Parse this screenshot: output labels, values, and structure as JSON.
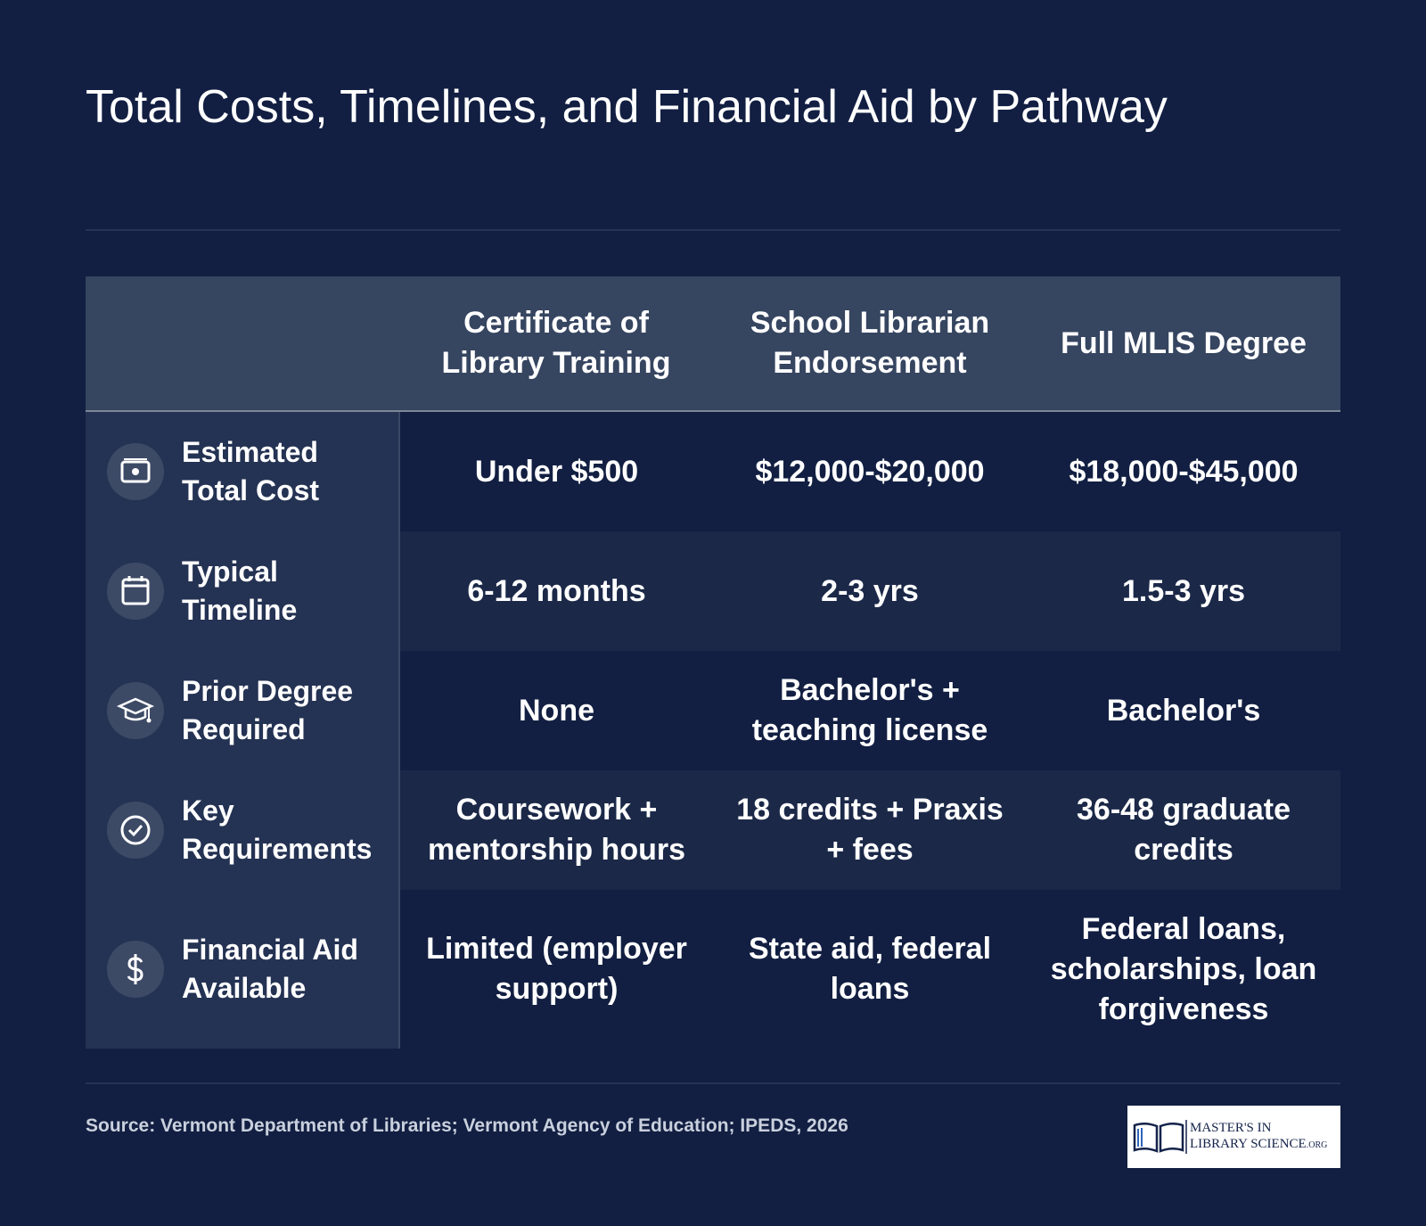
{
  "title": "Total Costs, Timelines, and Financial Aid by Pathway",
  "table": {
    "header": [
      "Certificate of Library Training",
      "School Librarian Endorsement",
      "Full MLIS Degree"
    ],
    "rows": [
      {
        "label": "Estimated Total Cost",
        "cells": [
          "Under $500",
          "$12,000-$20,000",
          "$18,000-$45,000"
        ]
      },
      {
        "label": "Typical Timeline",
        "cells": [
          "6-12 months",
          "2-3 yrs",
          "1.5-3 yrs"
        ]
      },
      {
        "label": "Prior Degree Required",
        "cells": [
          "None",
          "Bachelor's + teaching license",
          "Bachelor's"
        ]
      },
      {
        "label": "Key Requirements",
        "cells": [
          "Coursework + mentorship hours",
          "18 credits + Praxis + fees",
          "36-48 graduate credits"
        ]
      },
      {
        "label": "Financial Aid Available",
        "cells": [
          "Limited (employer support)",
          "State aid, federal loans",
          "Federal loans, scholarships, loan forgiveness"
        ]
      }
    ]
  },
  "source": "Source: Vermont Department of Libraries; Vermont Agency of Education; IPEDS, 2026",
  "logo": {
    "line1": "MASTER'S IN",
    "line2": "LIBRARY SCIENCE",
    "suffix": ".ORG"
  }
}
